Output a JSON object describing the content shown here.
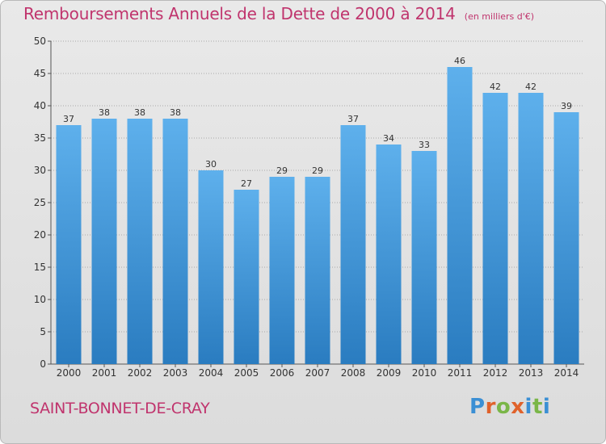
{
  "title": "Remboursements Annuels de la Dette de 2000 à 2014",
  "unit_note": "(en milliers d'€)",
  "commune": "SAINT-BONNET-DE-CRAY",
  "logo_text": "Proxiti",
  "colors": {
    "title": "#c0346d",
    "bar_top": "#5eb0ec",
    "bar_bottom": "#2a7cc0",
    "logo_letters": [
      "#3b8fd4",
      "#e0622b",
      "#7ab648",
      "#e0622b",
      "#3b8fd4",
      "#7ab648",
      "#3b8fd4"
    ]
  },
  "chart_data": {
    "type": "bar",
    "categories": [
      "2000",
      "2001",
      "2002",
      "2003",
      "2004",
      "2005",
      "2006",
      "2007",
      "2008",
      "2009",
      "2010",
      "2011",
      "2012",
      "2013",
      "2014"
    ],
    "values": [
      37,
      38,
      38,
      38,
      30,
      27,
      29,
      29,
      37,
      34,
      33,
      46,
      42,
      42,
      39
    ],
    "title": "Remboursements Annuels de la Dette de 2000 à 2014",
    "xlabel": "",
    "ylabel": "",
    "ylim": [
      0,
      50
    ],
    "yticks": [
      0,
      5,
      10,
      15,
      20,
      25,
      30,
      35,
      40,
      45,
      50
    ],
    "grid": "horizontal dotted",
    "data_labels": true
  }
}
